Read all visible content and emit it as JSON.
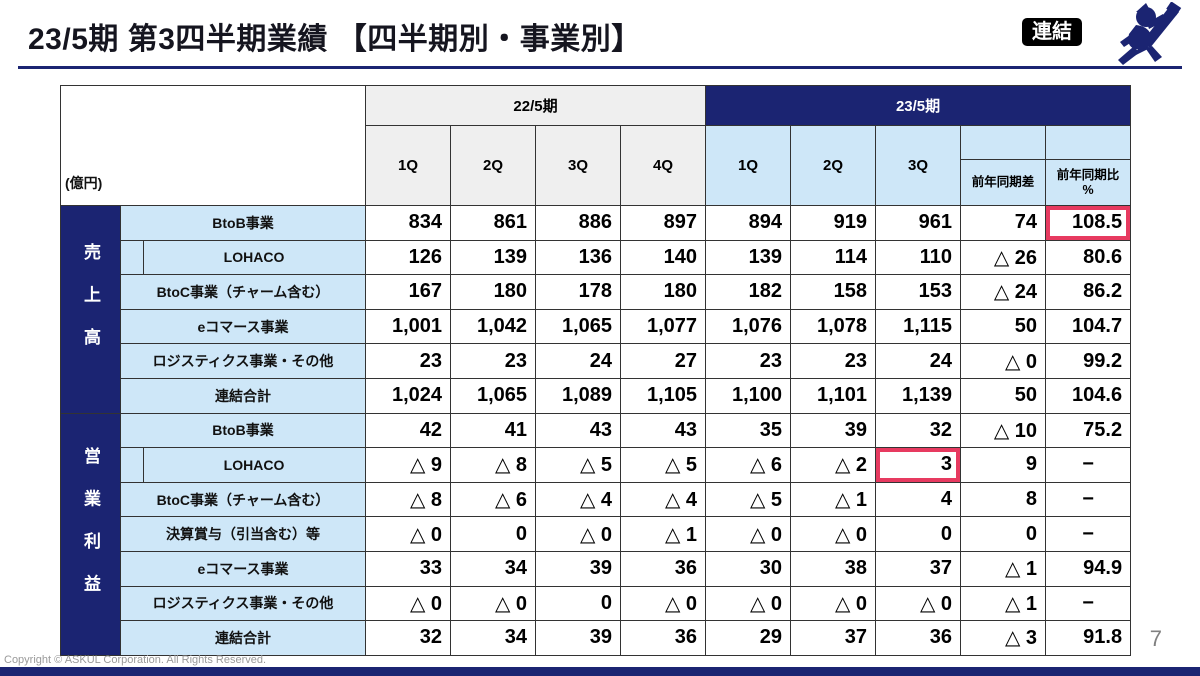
{
  "header": {
    "title": "23/5期 第3四半期業績 【四半期別・事業別】",
    "badge": "連結"
  },
  "footer": {
    "copyright": "Copyright © ASKUL Corporation. All Rights Reserved.",
    "page_number": "7"
  },
  "colors": {
    "navy": "#1b2472",
    "light_blue": "#cee7f8",
    "gray": "#efefef",
    "highlight": "#e73a60",
    "border": "#333333"
  },
  "table": {
    "unit_label": "(億円)",
    "period_headers": [
      {
        "label": "22/5期",
        "colspan": 4,
        "theme": "gray"
      },
      {
        "label": "23/5期",
        "colspan": 5,
        "theme": "navy"
      }
    ],
    "quarter_headers": [
      {
        "label": "1Q",
        "theme": "gray"
      },
      {
        "label": "2Q",
        "theme": "gray"
      },
      {
        "label": "3Q",
        "theme": "gray"
      },
      {
        "label": "4Q",
        "theme": "gray"
      },
      {
        "label": "1Q",
        "theme": "blue"
      },
      {
        "label": "2Q",
        "theme": "blue"
      },
      {
        "label": "3Q",
        "theme": "blue"
      },
      {
        "label": "前年同期差",
        "theme": "blue",
        "boxed": true
      },
      {
        "label": "前年同期比",
        "sub": "%",
        "theme": "blue",
        "boxed": true
      }
    ],
    "groups": [
      {
        "key": "sales",
        "name": "売上高",
        "rows": [
          {
            "label": "BtoB事業",
            "values": [
              "834",
              "861",
              "886",
              "897",
              "894",
              "919",
              "961",
              "74",
              "108.5"
            ]
          },
          {
            "label": "LOHACO",
            "indent": true,
            "values": [
              "126",
              "139",
              "136",
              "140",
              "139",
              "114",
              "110",
              "△ 26",
              "80.6"
            ]
          },
          {
            "label": "BtoC事業（チャーム含む）",
            "values": [
              "167",
              "180",
              "178",
              "180",
              "182",
              "158",
              "153",
              "△ 24",
              "86.2"
            ]
          },
          {
            "label": "eコマース事業",
            "values": [
              "1,001",
              "1,042",
              "1,065",
              "1,077",
              "1,076",
              "1,078",
              "1,115",
              "50",
              "104.7"
            ]
          },
          {
            "label": "ロジスティクス事業・その他",
            "values": [
              "23",
              "23",
              "24",
              "27",
              "23",
              "23",
              "24",
              "△ 0",
              "99.2"
            ]
          },
          {
            "label": "連結合計",
            "values": [
              "1,024",
              "1,065",
              "1,089",
              "1,105",
              "1,100",
              "1,101",
              "1,139",
              "50",
              "104.6"
            ]
          }
        ]
      },
      {
        "key": "operating-profit",
        "name": "営業利益",
        "rows": [
          {
            "label": "BtoB事業",
            "values": [
              "42",
              "41",
              "43",
              "43",
              "35",
              "39",
              "32",
              "△ 10",
              "75.2"
            ]
          },
          {
            "label": "LOHACO",
            "indent": true,
            "values": [
              "△ 9",
              "△ 8",
              "△ 5",
              "△ 5",
              "△ 6",
              "△ 2",
              "3",
              "9",
              "−"
            ]
          },
          {
            "label": "BtoC事業（チャーム含む）",
            "values": [
              "△ 8",
              "△ 6",
              "△ 4",
              "△ 4",
              "△ 5",
              "△ 1",
              "4",
              "8",
              "−"
            ]
          },
          {
            "label": "決算賞与（引当含む）等",
            "values": [
              "△ 0",
              "0",
              "△ 0",
              "△ 1",
              "△ 0",
              "△ 0",
              "0",
              "0",
              "−"
            ]
          },
          {
            "label": "eコマース事業",
            "values": [
              "33",
              "34",
              "39",
              "36",
              "30",
              "38",
              "37",
              "△ 1",
              "94.9"
            ]
          },
          {
            "label": "ロジスティクス事業・その他",
            "values": [
              "△ 0",
              "△ 0",
              "0",
              "△ 0",
              "△ 0",
              "△ 0",
              "△ 0",
              "△ 1",
              "−"
            ]
          },
          {
            "label": "連結合計",
            "values": [
              "32",
              "34",
              "39",
              "36",
              "29",
              "37",
              "36",
              "△ 3",
              "91.8"
            ]
          }
        ]
      }
    ],
    "highlights": [
      {
        "group": 0,
        "row": 0,
        "col": 8
      },
      {
        "group": 1,
        "row": 1,
        "col": 6
      }
    ]
  }
}
